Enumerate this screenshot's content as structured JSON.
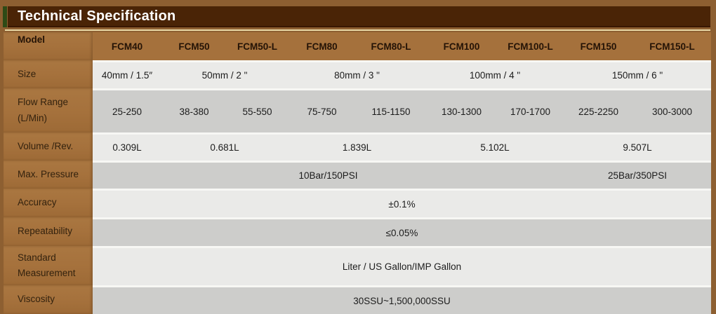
{
  "title": "Technical Specification",
  "colors": {
    "frame_brown": "#8d5f31",
    "title_bar_brown": "#4a2406",
    "accent_green": "#2e4a16",
    "header_brown": "#a5713c",
    "row_light_gray": "#eaeae8",
    "row_dark_gray": "#cdcdcb",
    "title_text": "#ffffff"
  },
  "table": {
    "header": {
      "label": "Model",
      "models": [
        "FCM40",
        "FCM50",
        "FCM50-L",
        "FCM80",
        "FCM80-L",
        "FCM100",
        "FCM100-L",
        "FCM150",
        "FCM150-L"
      ]
    },
    "rows": [
      {
        "id": "size",
        "label_lines": [
          "Size"
        ],
        "shade": "light",
        "cells": [
          {
            "text": "40mm / 1.5″",
            "span": 1
          },
          {
            "text": "50mm / 2 \"",
            "span": 2
          },
          {
            "text": "80mm / 3 \"",
            "span": 2
          },
          {
            "text": "100mm / 4 \"",
            "span": 2
          },
          {
            "text": "150mm / 6 \"",
            "span": 2
          }
        ]
      },
      {
        "id": "flow-range",
        "label_lines": [
          "Flow Range",
          "(L/Min)"
        ],
        "shade": "dark",
        "cells": [
          {
            "text": "25-250",
            "span": 1
          },
          {
            "text": "38-380",
            "span": 1
          },
          {
            "text": "55-550",
            "span": 1
          },
          {
            "text": "75-750",
            "span": 1
          },
          {
            "text": "115-1150",
            "span": 1
          },
          {
            "text": "130-1300",
            "span": 1
          },
          {
            "text": "170-1700",
            "span": 1
          },
          {
            "text": "225-2250",
            "span": 1
          },
          {
            "text": "300-3000",
            "span": 1
          }
        ]
      },
      {
        "id": "volume-rev",
        "label_lines": [
          "Volume /Rev."
        ],
        "shade": "light",
        "cells": [
          {
            "text": "0.309L",
            "span": 1
          },
          {
            "text": "0.681L",
            "span": 2
          },
          {
            "text": "1.839L",
            "span": 2
          },
          {
            "text": "5.102L",
            "span": 2
          },
          {
            "text": "9.507L",
            "span": 2
          }
        ]
      },
      {
        "id": "max-pressure",
        "label_lines": [
          "Max. Pressure"
        ],
        "shade": "dark",
        "cells": [
          {
            "text": "10Bar/150PSI",
            "span": 7
          },
          {
            "text": "25Bar/350PSI",
            "span": 2
          }
        ]
      },
      {
        "id": "accuracy",
        "label_lines": [
          "Accuracy"
        ],
        "shade": "light",
        "cells": [
          {
            "text": "±0.1%",
            "span": 9
          }
        ]
      },
      {
        "id": "repeatability",
        "label_lines": [
          "Repeatability"
        ],
        "shade": "dark",
        "cells": [
          {
            "text": "≤0.05%",
            "span": 9
          }
        ]
      },
      {
        "id": "standard-measurement",
        "label_lines": [
          "Standard",
          "Measurement"
        ],
        "shade": "light",
        "cells": [
          {
            "text": "Liter / US Gallon/IMP Gallon",
            "span": 9
          }
        ]
      },
      {
        "id": "viscosity",
        "label_lines": [
          "Viscosity"
        ],
        "shade": "dark",
        "cells": [
          {
            "text": "30SSU~1,500,000SSU",
            "span": 9
          }
        ]
      }
    ]
  }
}
